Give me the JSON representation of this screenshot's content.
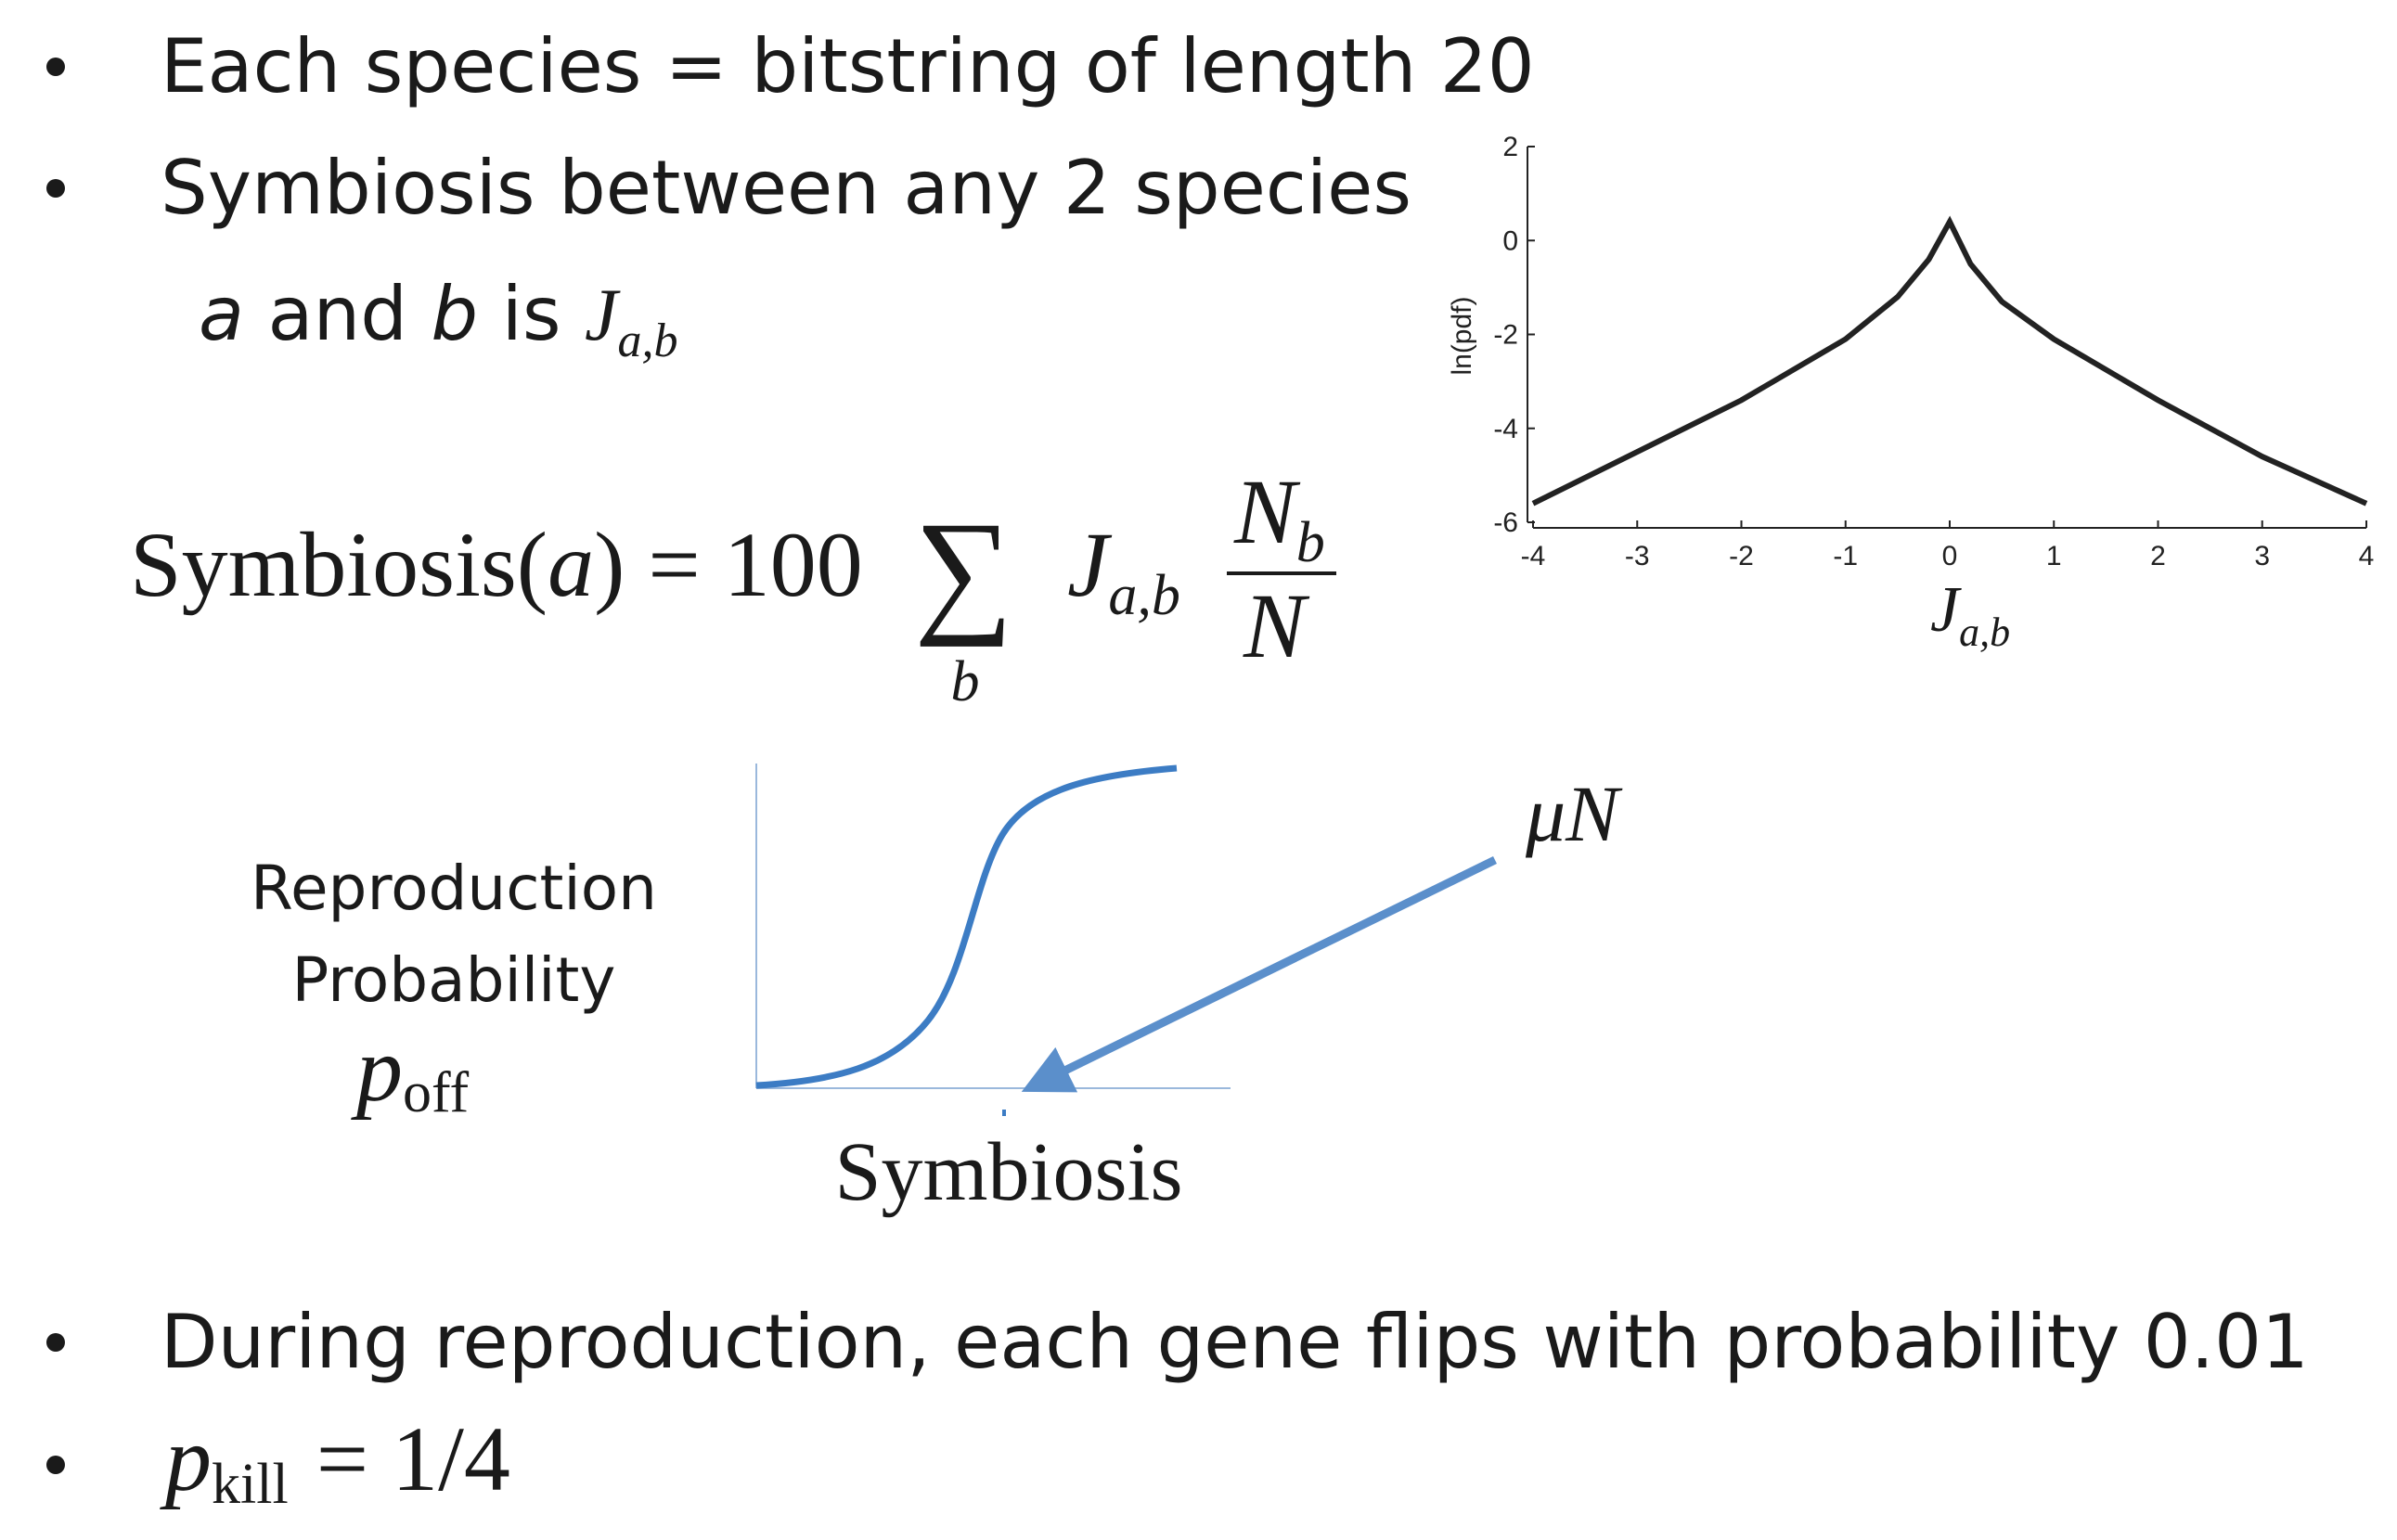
{
  "bullets": [
    "Each species = bitstring of length 20",
    "Symbiosis between any 2 species",
    "During reproduction, each gene flips with probability 0.01"
  ],
  "line2": {
    "a": "a",
    "and": "and",
    "b": "b",
    "is": "is",
    "J": "J",
    "sub": "a,b"
  },
  "formula": {
    "lhs": "Symbiosis(",
    "arg": "a",
    "rhs": ") = 100",
    "sum": "∑",
    "sum_index": "b",
    "J": "J",
    "J_sub": "a,b",
    "num": "N",
    "num_sub": "b",
    "den": "N"
  },
  "sigmoid": {
    "ylabel": [
      "Reproduction",
      "Probability"
    ],
    "p": "p",
    "p_sub": "off",
    "xlabel": "Symbiosis",
    "annotation": "μN"
  },
  "last": {
    "p": "p",
    "sub": "kill",
    "rhs": "= 1/4"
  },
  "chart_data": {
    "type": "line",
    "ylabel": "ln(pdf)",
    "xlabel": "J",
    "xlabel_sub": "a,b",
    "x": [
      -4,
      -3,
      -2,
      -1,
      -0.5,
      -0.2,
      0,
      0.2,
      0.5,
      1,
      2,
      3,
      4
    ],
    "values": [
      -5.6,
      -4.5,
      -3.4,
      -2.1,
      -1.2,
      -0.4,
      0.4,
      -0.5,
      -1.3,
      -2.1,
      -3.4,
      -4.6,
      -5.6
    ],
    "color": "#222222",
    "xlim": [
      -4,
      4
    ],
    "ylim": [
      -6,
      2
    ],
    "xticks": [
      -4,
      -3,
      -2,
      -1,
      0,
      1,
      2,
      3,
      4
    ],
    "yticks": [
      -6,
      -4,
      -2,
      0,
      2
    ]
  }
}
